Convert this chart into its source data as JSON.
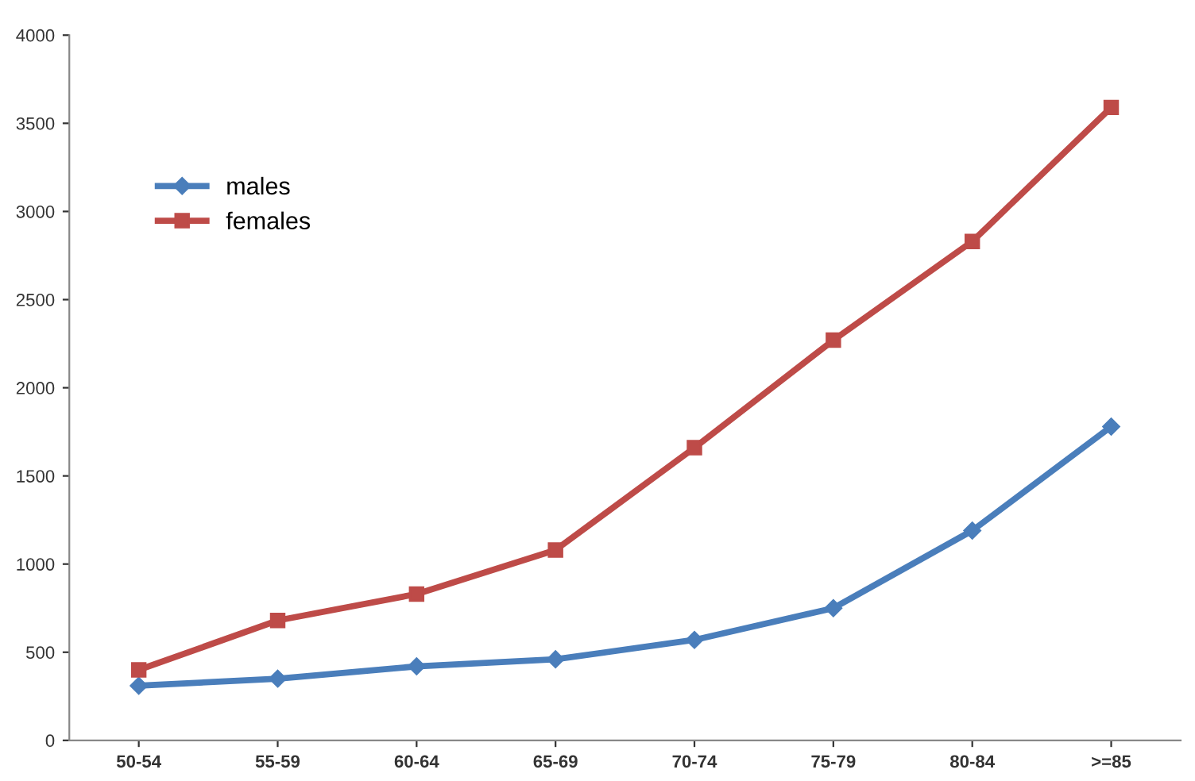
{
  "chart_data": {
    "type": "line",
    "categories": [
      "50-54",
      "55-59",
      "60-64",
      "65-69",
      "70-74",
      "75-79",
      "80-84",
      ">=85"
    ],
    "series": [
      {
        "name": "males",
        "color": "#4a7ebb",
        "marker": "diamond",
        "values": [
          310,
          350,
          420,
          460,
          570,
          750,
          1190,
          1780
        ]
      },
      {
        "name": "females",
        "color": "#be4b48",
        "marker": "square",
        "values": [
          400,
          680,
          830,
          1080,
          1660,
          2270,
          2830,
          3590
        ]
      }
    ],
    "ylim": [
      0,
      4000
    ],
    "yticks": [
      0,
      500,
      1000,
      1500,
      2000,
      2500,
      3000,
      3500,
      4000
    ],
    "grid": false,
    "legend": "top left",
    "line_style": "solid"
  }
}
